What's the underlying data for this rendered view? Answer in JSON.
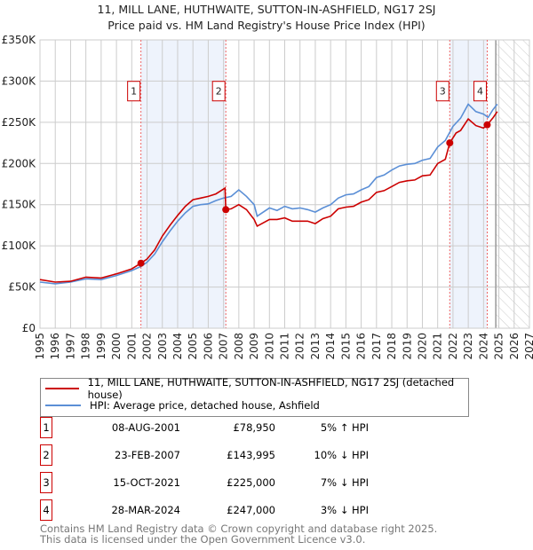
{
  "chart_data": {
    "type": "line",
    "title": "11, MILL LANE, HUTHWAITE, SUTTON-IN-ASHFIELD, NG17 2SJ",
    "subtitle": "Price paid vs. HM Land Registry's House Price Index (HPI)",
    "xlim": [
      1995,
      2027
    ],
    "ylim": [
      0,
      350000
    ],
    "yticks": [
      {
        "v": 0,
        "l": "£0"
      },
      {
        "v": 50000,
        "l": "£50K"
      },
      {
        "v": 100000,
        "l": "£100K"
      },
      {
        "v": 150000,
        "l": "£150K"
      },
      {
        "v": 200000,
        "l": "£200K"
      },
      {
        "v": 250000,
        "l": "£250K"
      },
      {
        "v": 300000,
        "l": "£300K"
      },
      {
        "v": 350000,
        "l": "£350K"
      }
    ],
    "xticks": [
      "1995",
      "1996",
      "1997",
      "1998",
      "1999",
      "2000",
      "2001",
      "2002",
      "2003",
      "2004",
      "2005",
      "2006",
      "2007",
      "2008",
      "2009",
      "2010",
      "2011",
      "2012",
      "2013",
      "2014",
      "2015",
      "2016",
      "2017",
      "2018",
      "2019",
      "2020",
      "2021",
      "2022",
      "2023",
      "2024",
      "2025",
      "2026",
      "2027"
    ],
    "grid": true,
    "forecast_start": 2024.8,
    "shaded": [
      [
        2001.6,
        2007.15
      ],
      [
        2021.79,
        2024.24
      ]
    ],
    "series": [
      {
        "name": "11, MILL LANE, HUTHWAITE, SUTTON-IN-ASHFIELD, NG17 2SJ (detached house)",
        "color": "#cc0000",
        "x": [
          1995,
          1996,
          1997,
          1998,
          1999,
          2000,
          2001,
          2001.6,
          2002,
          2002.5,
          2003,
          2003.5,
          2004,
          2004.5,
          2005,
          2005.5,
          2006,
          2006.5,
          2007.1,
          2007.15,
          2007.5,
          2008,
          2008.5,
          2009,
          2009.2,
          2010,
          2010.5,
          2011,
          2011.5,
          2012,
          2012.5,
          2013,
          2013.5,
          2014,
          2014.5,
          2015,
          2015.5,
          2016,
          2016.5,
          2017,
          2017.5,
          2018,
          2018.5,
          2019,
          2019.5,
          2020,
          2020.5,
          2021,
          2021.5,
          2021.79,
          2022.2,
          2022.5,
          2023,
          2023.5,
          2024,
          2024.24,
          2024.6,
          2024.9
        ],
        "y": [
          59000,
          56000,
          57000,
          62000,
          61000,
          66000,
          72000,
          78950,
          84000,
          95000,
          112000,
          125000,
          137000,
          148000,
          156000,
          158000,
          160000,
          163000,
          170000,
          143995,
          145000,
          150000,
          144000,
          132000,
          124000,
          132000,
          132000,
          134000,
          130000,
          130000,
          130000,
          127000,
          133000,
          136000,
          145000,
          147000,
          148000,
          153000,
          156000,
          165000,
          167000,
          172000,
          177000,
          179000,
          180000,
          185000,
          186000,
          200000,
          205000,
          225000,
          237000,
          240000,
          254000,
          246000,
          243000,
          247000,
          255000,
          263000
        ]
      },
      {
        "name": "HPI: Average price, detached house, Ashfield",
        "color": "#5b8fd6",
        "x": [
          1995,
          1996,
          1997,
          1998,
          1999,
          2000,
          2001,
          2001.6,
          2002,
          2002.5,
          2003,
          2003.5,
          2004,
          2004.5,
          2005,
          2005.5,
          2006,
          2006.5,
          2007,
          2007.5,
          2008,
          2008.5,
          2009,
          2009.2,
          2010,
          2010.5,
          2011,
          2011.5,
          2012,
          2012.5,
          2013,
          2013.5,
          2014,
          2014.5,
          2015,
          2015.5,
          2016,
          2016.5,
          2017,
          2017.5,
          2018,
          2018.5,
          2019,
          2019.5,
          2020,
          2020.5,
          2021,
          2021.5,
          2022,
          2022.5,
          2023,
          2023.5,
          2024,
          2024.3,
          2024.6,
          2024.9
        ],
        "y": [
          56000,
          54000,
          56000,
          60000,
          59000,
          64000,
          70000,
          75000,
          80000,
          90000,
          105000,
          118000,
          130000,
          140000,
          148000,
          150000,
          151000,
          155000,
          158000,
          160000,
          168000,
          160000,
          150000,
          136000,
          146000,
          143000,
          148000,
          145000,
          146000,
          144000,
          141000,
          146000,
          150000,
          158000,
          162000,
          163000,
          168000,
          172000,
          183000,
          186000,
          192000,
          197000,
          199000,
          200000,
          204000,
          206000,
          220000,
          228000,
          245000,
          255000,
          272000,
          263000,
          260000,
          256000,
          265000,
          272000
        ]
      }
    ],
    "sales": [
      {
        "label": "1",
        "x": 2001.6,
        "y": 78950
      },
      {
        "label": "2",
        "x": 2007.15,
        "y": 143995
      },
      {
        "label": "3",
        "x": 2021.79,
        "y": 225000
      },
      {
        "label": "4",
        "x": 2024.24,
        "y": 247000
      }
    ]
  },
  "legend": {
    "red": "11, MILL LANE, HUTHWAITE, SUTTON-IN-ASHFIELD, NG17 2SJ (detached house)",
    "blue": "HPI: Average price, detached house, Ashfield"
  },
  "transactions": [
    {
      "n": "1",
      "date": "08-AUG-2001",
      "price": "£78,950",
      "hpi": "5% ↑ HPI"
    },
    {
      "n": "2",
      "date": "23-FEB-2007",
      "price": "£143,995",
      "hpi": "10% ↓ HPI"
    },
    {
      "n": "3",
      "date": "15-OCT-2021",
      "price": "£225,000",
      "hpi": "7% ↓ HPI"
    },
    {
      "n": "4",
      "date": "28-MAR-2024",
      "price": "£247,000",
      "hpi": "3% ↓ HPI"
    }
  ],
  "footer": {
    "line1": "Contains HM Land Registry data © Crown copyright and database right 2025.",
    "line2": "This data is licensed under the Open Government Licence v3.0."
  }
}
